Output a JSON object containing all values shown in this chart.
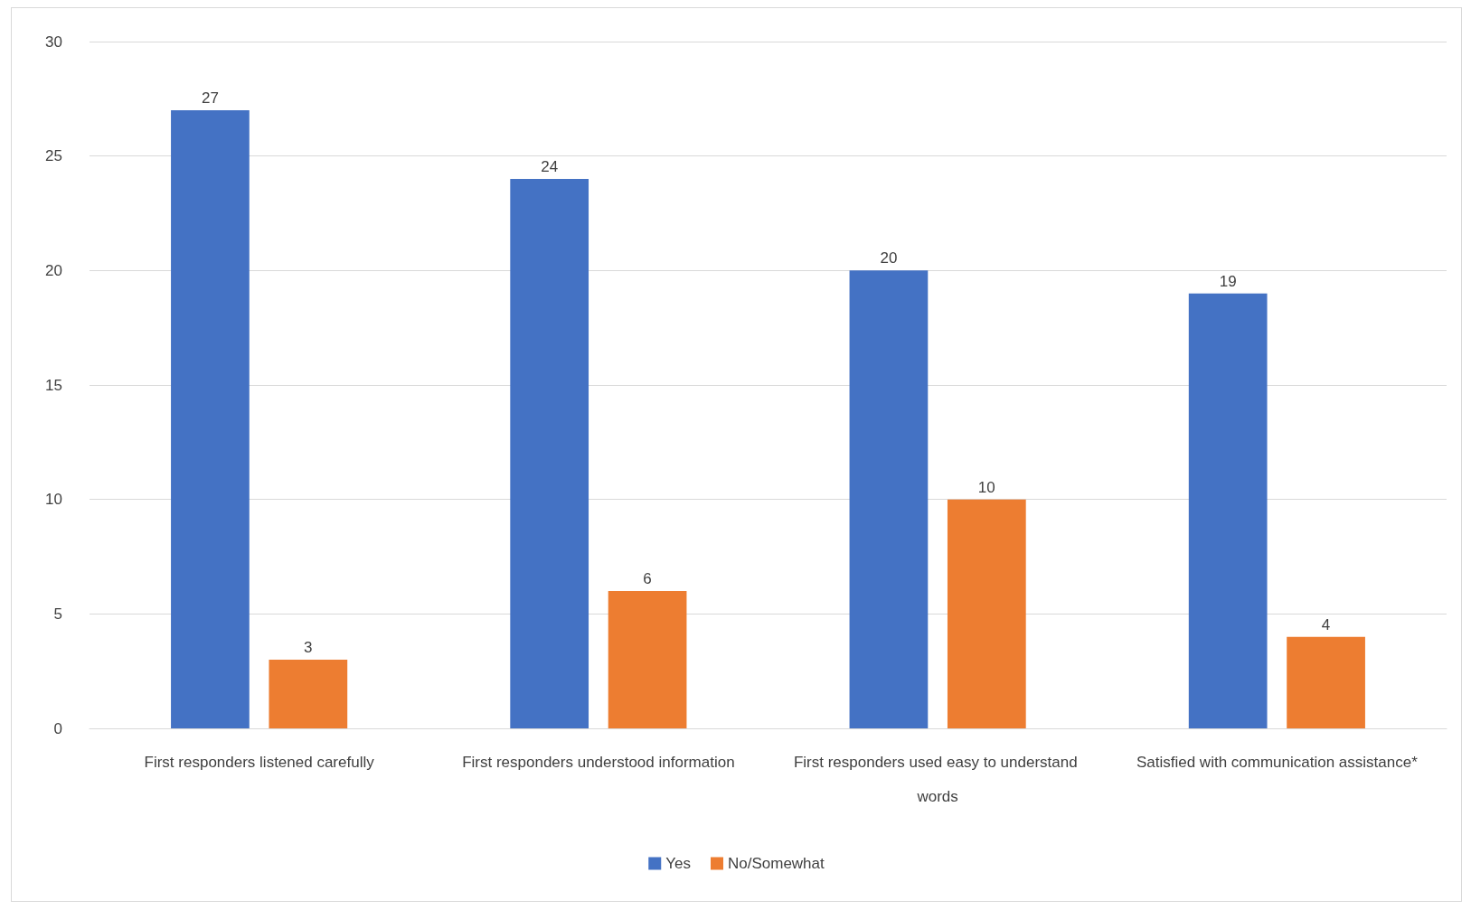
{
  "chart_data": {
    "type": "bar",
    "categories": [
      "First responders listened carefully",
      "First responders understood information",
      "First responders used easy to understand words",
      "Satisfied with communication assistance*"
    ],
    "series": [
      {
        "name": "Yes",
        "color": "#4472c4",
        "values": [
          27,
          24,
          20,
          19
        ]
      },
      {
        "name": "No/Somewhat",
        "color": "#ed7d31",
        "values": [
          3,
          6,
          10,
          4
        ]
      }
    ],
    "ylim": [
      0,
      30
    ],
    "yticks": [
      0,
      5,
      10,
      15,
      20,
      25,
      30
    ],
    "grid": "y",
    "legend": "bottom",
    "data_labels": true
  }
}
